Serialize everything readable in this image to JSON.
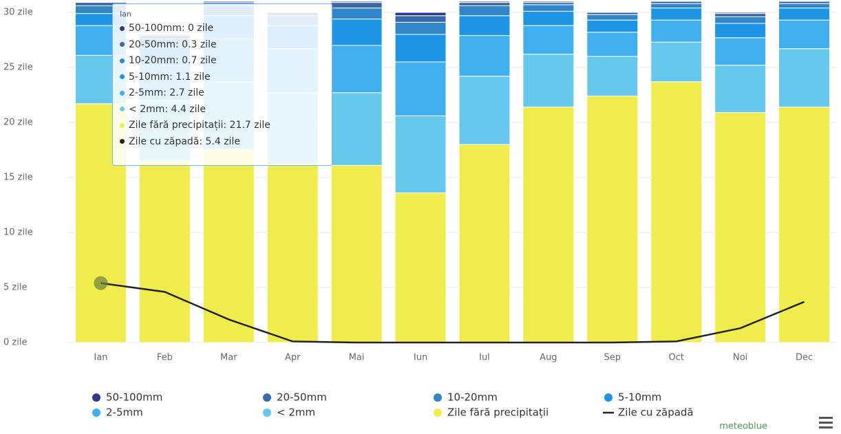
{
  "chart_data": {
    "type": "bar",
    "stacked": true,
    "categories": [
      "Ian",
      "Feb",
      "Mar",
      "Apr",
      "Mai",
      "Iun",
      "Iul",
      "Aug",
      "Sep",
      "Oct",
      "Noi",
      "Dec"
    ],
    "ylim": [
      0,
      31
    ],
    "yticks": [
      {
        "value": 0,
        "label": "0 zile"
      },
      {
        "value": 5,
        "label": "5 zile"
      },
      {
        "value": 10,
        "label": "10 zile"
      },
      {
        "value": 15,
        "label": "15 zile"
      },
      {
        "value": 20,
        "label": "20 zile"
      },
      {
        "value": 25,
        "label": "25 zile"
      },
      {
        "value": 30,
        "label": "30 zile"
      }
    ],
    "series": [
      {
        "name": "50-100mm",
        "color": "#34388a",
        "values": [
          0,
          0.1,
          0.1,
          0,
          0.1,
          0.3,
          0.1,
          0.1,
          0,
          0,
          0.1,
          0
        ]
      },
      {
        "name": "20-50mm",
        "color": "#3a68a8",
        "values": [
          0.3,
          0.3,
          0.3,
          0.3,
          0.5,
          0.6,
          0.3,
          0.2,
          0.2,
          0.2,
          0.3,
          0.2
        ]
      },
      {
        "name": "10-20mm",
        "color": "#2f86c8",
        "values": [
          0.7,
          0.8,
          0.9,
          0.9,
          1,
          1.1,
          0.9,
          0.6,
          0.5,
          0.4,
          0.6,
          0.4
        ]
      },
      {
        "name": "5-10mm",
        "color": "#1f95e6",
        "values": [
          1.1,
          1.6,
          2.1,
          2.1,
          2.4,
          2.5,
          1.8,
          1.3,
          1.1,
          1.1,
          1.3,
          1.1
        ]
      },
      {
        "name": "2-5mm",
        "color": "#42b0ef",
        "values": [
          2.7,
          3.2,
          3.9,
          4,
          4.3,
          4.9,
          3.7,
          2.6,
          2.2,
          2,
          2.5,
          2.6
        ]
      },
      {
        "name": "< 2mm",
        "color": "#66c8ec",
        "values": [
          4.4,
          5.5,
          6.2,
          6.5,
          6.6,
          7,
          6.2,
          4.8,
          3.6,
          3.6,
          4.3,
          5.3
        ]
      },
      {
        "name": "Zile fără precipitații",
        "color": "#f0ec4e",
        "values": [
          21.7,
          16.5,
          17.5,
          16.2,
          16.1,
          13.6,
          18,
          21.4,
          22.4,
          23.7,
          20.9,
          21.4
        ]
      },
      {
        "name": "Zile cu zăpadă",
        "color": "#222222",
        "type": "line",
        "values": [
          5.4,
          4.6,
          2.1,
          0.1,
          0,
          0,
          0,
          0,
          0,
          0.1,
          1.3,
          3.7
        ]
      }
    ],
    "tooltip": {
      "title": "Ian",
      "rows": [
        "50-100mm: 0 zile",
        "20-50mm: 0.3 zile",
        "10-20mm: 0.7 zile",
        "5-10mm: 1.1 zile",
        "2-5mm: 2.7 zile",
        "< 2mm: 4.4 zile",
        "Zile fără precipitații: 21.7 zile",
        "Zile cu zăpadă: 5.4 zile"
      ]
    },
    "credit": "meteoblue"
  }
}
